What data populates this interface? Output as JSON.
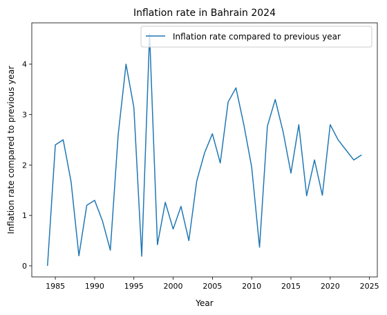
{
  "chart_data": {
    "type": "line",
    "title": "Inflation rate in Bahrain 2024",
    "xlabel": "Year",
    "ylabel": "Inflation rate compared to previous year",
    "xlim": [
      1982.0,
      2026.0
    ],
    "ylim": [
      -0.22,
      4.82
    ],
    "xticks": [
      1985,
      1990,
      1995,
      2000,
      2005,
      2010,
      2015,
      2020,
      2025
    ],
    "xtick_labels": [
      "1985",
      "1990",
      "1995",
      "2000",
      "2005",
      "2010",
      "2015",
      "2020",
      "2025"
    ],
    "yticks": [
      0,
      1,
      2,
      3,
      4
    ],
    "ytick_labels": [
      "0",
      "1",
      "2",
      "3",
      "4"
    ],
    "grid": false,
    "legend_position": "top-right",
    "series": [
      {
        "name": "Inflation rate compared to previous year",
        "color": "#1f77b4",
        "x": [
          1984,
          1985,
          1986,
          1987,
          1988,
          1989,
          1990,
          1991,
          1992,
          1993,
          1994,
          1995,
          1996,
          1997,
          1998,
          1999,
          2000,
          2001,
          2002,
          2003,
          2004,
          2005,
          2006,
          2007,
          2008,
          2009,
          2010,
          2011,
          2012,
          2013,
          2014,
          2015,
          2016,
          2017,
          2018,
          2019,
          2020,
          2021,
          2022,
          2023,
          2024
        ],
        "values": [
          0.0,
          2.4,
          2.5,
          1.67,
          0.2,
          1.2,
          1.3,
          0.89,
          0.31,
          2.6,
          4.0,
          3.14,
          0.19,
          4.6,
          0.42,
          1.26,
          0.73,
          1.18,
          0.5,
          1.68,
          2.24,
          2.62,
          2.04,
          3.25,
          3.53,
          2.8,
          1.96,
          0.37,
          2.77,
          3.3,
          2.66,
          1.84,
          2.8,
          1.39,
          2.1,
          1.4,
          2.8,
          2.5,
          2.3,
          2.1,
          2.2
        ]
      }
    ]
  }
}
